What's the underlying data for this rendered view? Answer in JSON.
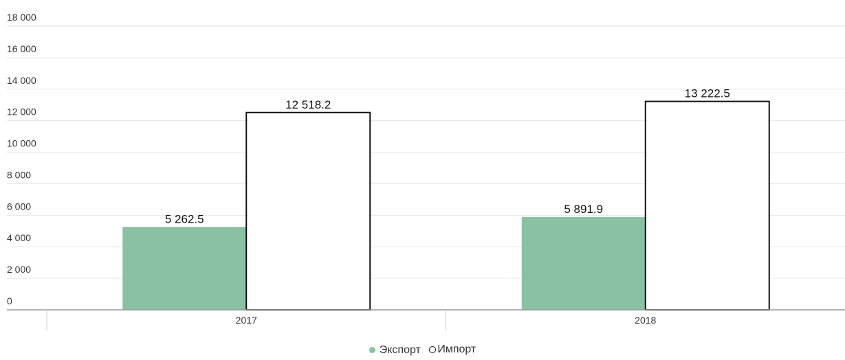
{
  "chart_data": {
    "type": "bar",
    "categories": [
      "2017",
      "2018"
    ],
    "series": [
      {
        "name": "Экспорт",
        "values": [
          5262.5,
          5891.9
        ],
        "value_labels": [
          "5 262.5",
          "5 891.9"
        ],
        "color": "#8bc1a3"
      },
      {
        "name": "Импорт",
        "values": [
          12518.2,
          13222.5
        ],
        "value_labels": [
          "12 518.2",
          "13 222.5"
        ],
        "color": "#ffffff",
        "border": "#111111"
      }
    ],
    "ylim": [
      0,
      18000
    ],
    "yticks": [
      0,
      2000,
      4000,
      6000,
      8000,
      10000,
      12000,
      14000,
      16000,
      18000
    ],
    "ytick_labels": [
      "0",
      "2 000",
      "4 000",
      "6 000",
      "8 000",
      "10 000",
      "12 000",
      "14 000",
      "16 000",
      "18 000"
    ],
    "grid": true,
    "legend_position": "bottom-center"
  },
  "legend": {
    "items": [
      {
        "label": "Экспорт",
        "marker": "filled-circle",
        "color": "#8bc1a3"
      },
      {
        "label": "Импорт",
        "marker": "hollow-circle",
        "color": "#111111"
      }
    ]
  }
}
